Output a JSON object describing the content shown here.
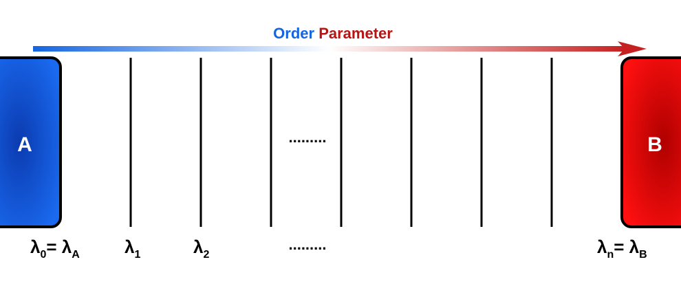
{
  "title": {
    "word1": "Order",
    "word2": "Parameter",
    "color1": "#1565e0",
    "color2": "#b81414"
  },
  "arrow": {
    "color_start": "#1565e0",
    "color_mid": "#ffffff",
    "color_end": "#c62020"
  },
  "state_a": {
    "label": "A",
    "color_center": "#0b3bb0",
    "color_edge": "#1a6af0"
  },
  "state_b": {
    "label": "B",
    "color_center": "#b00000",
    "color_edge": "#ff1010"
  },
  "ellipsis_middle": ".........",
  "lambda_labels": {
    "l0_base": "λ",
    "l0_sub": "0",
    "l0_eq": "= ",
    "l0_rhs_base": "λ",
    "l0_rhs_sub": "A",
    "l1_base": "λ",
    "l1_sub": "1",
    "l2_base": "λ",
    "l2_sub": "2",
    "ellipsis": ".........",
    "ln_base": "λ",
    "ln_sub": "n",
    "ln_eq": "= ",
    "ln_rhs_base": "λ",
    "ln_rhs_sub": "B"
  },
  "window_lines_count": 7
}
